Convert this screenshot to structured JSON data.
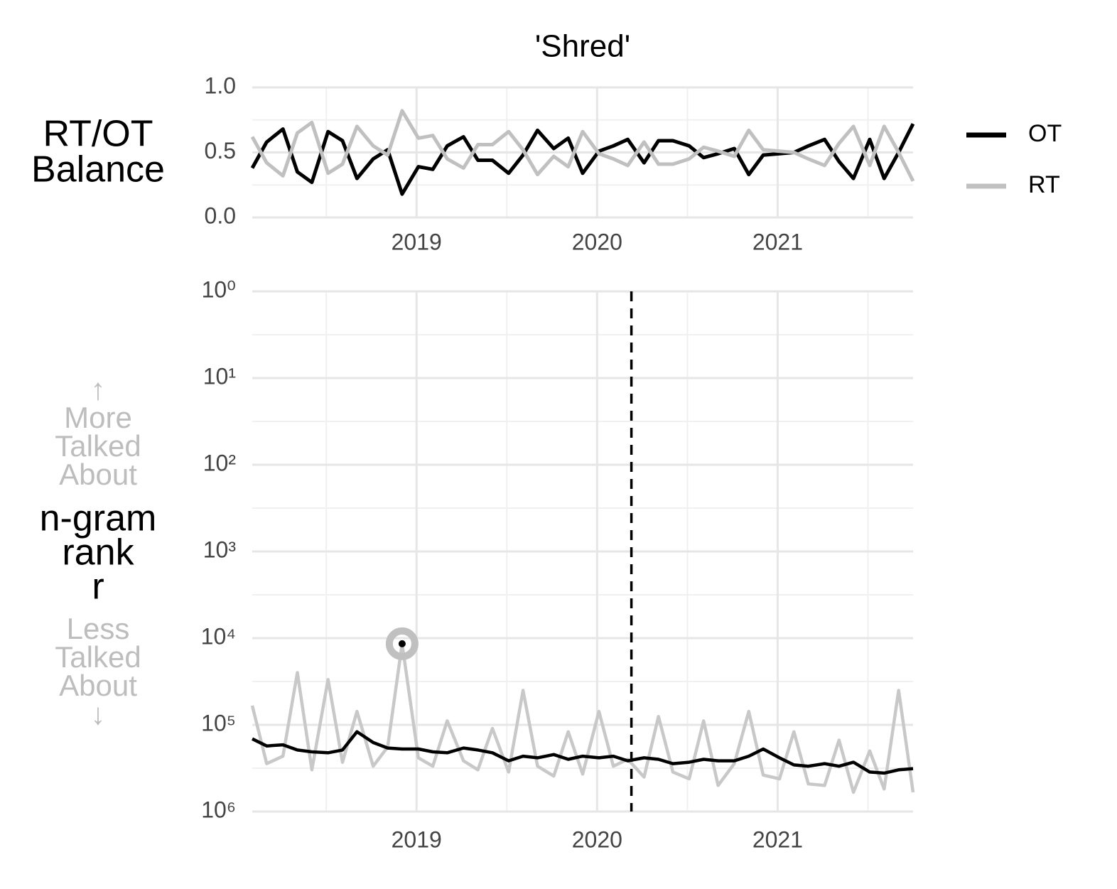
{
  "chart_data": [
    {
      "type": "line",
      "title": "'Shred'",
      "ylabel": [
        "RT/OT",
        "Balance"
      ],
      "x": [
        2018.09,
        2018.17,
        2018.26,
        2018.34,
        2018.42,
        2018.51,
        2018.59,
        2018.67,
        2018.76,
        2018.84,
        2018.92,
        2019.01,
        2019.09,
        2019.17,
        2019.26,
        2019.34,
        2019.42,
        2019.51,
        2019.59,
        2019.67,
        2019.76,
        2019.84,
        2019.92,
        2020.01,
        2020.09,
        2020.17,
        2020.26,
        2020.34,
        2020.42,
        2020.51,
        2020.59,
        2020.67,
        2020.76,
        2020.84,
        2020.92,
        2021.01,
        2021.09,
        2021.17,
        2021.26,
        2021.34,
        2021.42,
        2021.51,
        2021.59,
        2021.67,
        2021.75
      ],
      "series": [
        {
          "name": "OT",
          "color": "#000000",
          "values": [
            0.38,
            0.58,
            0.68,
            0.35,
            0.27,
            0.66,
            0.59,
            0.3,
            0.45,
            0.52,
            0.18,
            0.39,
            0.37,
            0.55,
            0.62,
            0.44,
            0.44,
            0.34,
            0.48,
            0.67,
            0.53,
            0.61,
            0.34,
            0.51,
            0.55,
            0.6,
            0.42,
            0.59,
            0.59,
            0.55,
            0.46,
            0.49,
            0.53,
            0.33,
            0.48,
            0.49,
            0.5,
            0.55,
            0.6,
            0.43,
            0.3,
            0.6,
            0.3,
            0.5,
            0.72
          ]
        },
        {
          "name": "RT",
          "color": "#c0c0c0",
          "values": [
            0.62,
            0.42,
            0.32,
            0.65,
            0.73,
            0.34,
            0.41,
            0.7,
            0.55,
            0.48,
            0.82,
            0.61,
            0.63,
            0.45,
            0.38,
            0.56,
            0.56,
            0.66,
            0.52,
            0.33,
            0.47,
            0.39,
            0.66,
            0.49,
            0.45,
            0.4,
            0.58,
            0.41,
            0.41,
            0.45,
            0.54,
            0.51,
            0.47,
            0.67,
            0.52,
            0.51,
            0.5,
            0.45,
            0.4,
            0.57,
            0.7,
            0.4,
            0.7,
            0.5,
            0.28
          ]
        }
      ],
      "xlim": [
        2018.09,
        2021.75
      ],
      "xticks": [
        2019,
        2020,
        2021
      ],
      "ylim": [
        0,
        1
      ],
      "yticks": [
        {
          "value": 0,
          "label": "0.0"
        },
        0.5,
        {
          "value": 1,
          "label": "1.0"
        }
      ],
      "grid": true,
      "legend": "right"
    },
    {
      "type": "line",
      "ylabel": [
        "n-gram",
        "rank",
        "r"
      ],
      "ylabel_up": [
        "↑",
        "More",
        "Talked",
        "About"
      ],
      "ylabel_down": [
        "Less",
        "Talked",
        "About",
        "↓"
      ],
      "x": [
        2018.09,
        2018.17,
        2018.26,
        2018.34,
        2018.42,
        2018.51,
        2018.59,
        2018.67,
        2018.76,
        2018.84,
        2018.92,
        2019.01,
        2019.09,
        2019.17,
        2019.26,
        2019.34,
        2019.42,
        2019.51,
        2019.59,
        2019.67,
        2019.76,
        2019.84,
        2019.92,
        2020.01,
        2020.09,
        2020.17,
        2020.26,
        2020.34,
        2020.42,
        2020.51,
        2020.59,
        2020.67,
        2020.76,
        2020.84,
        2020.92,
        2021.01,
        2021.09,
        2021.17,
        2021.26,
        2021.34,
        2021.42,
        2021.51,
        2021.59,
        2021.67,
        2021.75
      ],
      "series": [
        {
          "color": "#c8c8c8",
          "values": [
            60000,
            280000,
            230000,
            25000,
            330000,
            30000,
            270000,
            70000,
            300000,
            180000,
            11600,
            240000,
            300000,
            90000,
            260000,
            330000,
            110000,
            350000,
            40000,
            300000,
            390000,
            120000,
            370000,
            70000,
            300000,
            250000,
            400000,
            80000,
            350000,
            420000,
            90000,
            500000,
            280000,
            70000,
            380000,
            420000,
            120000,
            480000,
            500000,
            150000,
            600000,
            200000,
            550000,
            40000,
            600000
          ]
        },
        {
          "color": "#000000",
          "values": [
            145000,
            175000,
            170000,
            195000,
            205000,
            210000,
            195000,
            120000,
            160000,
            185000,
            190000,
            190000,
            205000,
            210000,
            185000,
            195000,
            210000,
            260000,
            230000,
            240000,
            220000,
            250000,
            230000,
            240000,
            230000,
            260000,
            240000,
            250000,
            280000,
            270000,
            250000,
            260000,
            260000,
            230000,
            190000,
            240000,
            290000,
            300000,
            280000,
            300000,
            270000,
            350000,
            360000,
            330000,
            320000
          ]
        }
      ],
      "xlim": [
        2018.09,
        2021.75
      ],
      "xticks": [
        2019,
        2020,
        2021
      ],
      "ylim": [
        1,
        1000000
      ],
      "log_scale": true,
      "inverted": true,
      "yticks": [
        {
          "value": 1,
          "label": "10⁰"
        },
        {
          "value": 10,
          "label": "10¹"
        },
        {
          "value": 100,
          "label": "10²"
        },
        {
          "value": 1000,
          "label": "10³"
        },
        {
          "value": 10000,
          "label": "10⁴"
        },
        {
          "value": 100000,
          "label": "10⁵"
        },
        {
          "value": 1000000,
          "label": "10⁶"
        }
      ],
      "grid": true,
      "vline": 2020.19,
      "peak": {
        "x": 2018.92,
        "value": 11600
      }
    }
  ]
}
